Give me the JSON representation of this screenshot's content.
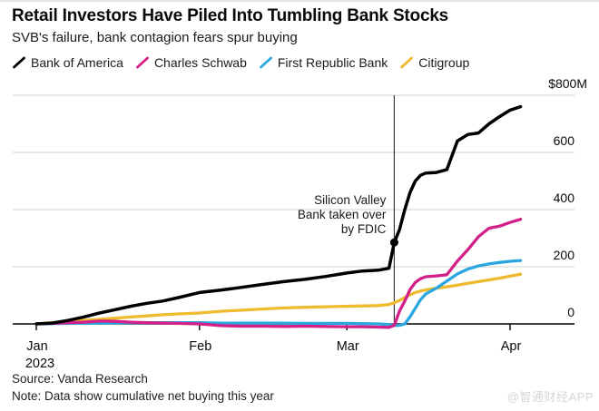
{
  "header": {
    "title": "Retail Investors Have Piled Into Tumbling Bank Stocks",
    "subtitle": "SVB's failure, bank contagion fears spur buying"
  },
  "legend": {
    "items": [
      {
        "label": "Bank of America",
        "color": "#000000"
      },
      {
        "label": "Charles Schwab",
        "color": "#d21f8a"
      },
      {
        "label": "First Republic Bank",
        "color": "#2ba7e0"
      },
      {
        "label": "Citigroup",
        "color": "#eeba2e"
      }
    ]
  },
  "footer": {
    "source": "Source: Vanda Research",
    "note": "Note: Data show cumulative net buying this year",
    "watermark": "@智通财经APP"
  },
  "chart_data": {
    "type": "line",
    "title": "Retail Investors Have Piled Into Tumbling Bank Stocks",
    "subtitle": "SVB's failure, bank contagion fears spur buying",
    "unit": "$M",
    "x_unit": "days since Jan 1 2023",
    "ylim": [
      -20,
      800
    ],
    "grid": "horizontal",
    "legend_position": "top",
    "x_days": [
      0,
      3,
      6,
      9,
      12,
      15,
      18,
      21,
      24,
      27,
      31,
      35,
      39,
      43,
      47,
      51,
      55,
      59,
      62,
      65,
      67,
      68,
      69,
      70,
      71,
      72,
      73,
      74,
      76,
      78,
      80,
      82,
      84,
      86,
      88,
      90,
      92
    ],
    "series": [
      {
        "name": "Bank of America",
        "color": "#000000",
        "values": [
          0,
          3,
          12,
          24,
          38,
          50,
          62,
          72,
          80,
          92,
          110,
          118,
          128,
          138,
          148,
          156,
          166,
          178,
          185,
          188,
          195,
          285,
          330,
          400,
          460,
          500,
          520,
          528,
          530,
          540,
          640,
          663,
          668,
          700,
          725,
          748,
          760
        ]
      },
      {
        "name": "Charles Schwab",
        "color": "#d21f8a",
        "values": [
          0,
          2,
          4,
          6,
          10,
          9,
          6,
          4,
          3,
          2,
          0,
          -6,
          -8,
          -8,
          -9,
          -8,
          -9,
          -10,
          -10,
          -11,
          -12,
          -5,
          45,
          80,
          120,
          145,
          158,
          165,
          168,
          172,
          220,
          260,
          305,
          335,
          342,
          355,
          366
        ]
      },
      {
        "name": "First Republic Bank",
        "color": "#2ba7e0",
        "values": [
          0,
          1,
          2,
          2,
          3,
          3,
          4,
          4,
          4,
          4,
          4,
          3,
          3,
          3,
          3,
          2,
          2,
          2,
          1,
          0,
          -2,
          -5,
          -5,
          0,
          25,
          55,
          85,
          105,
          125,
          150,
          175,
          192,
          203,
          210,
          215,
          219,
          222
        ]
      },
      {
        "name": "Citigroup",
        "color": "#eeba2e",
        "values": [
          0,
          4,
          8,
          12,
          16,
          20,
          24,
          28,
          32,
          35,
          38,
          44,
          48,
          52,
          56,
          58,
          60,
          62,
          63,
          64,
          68,
          74,
          82,
          92,
          102,
          110,
          115,
          119,
          125,
          130,
          136,
          142,
          148,
          154,
          160,
          167,
          174
        ]
      }
    ],
    "x_ticks": [
      {
        "day": 0,
        "label": "Jan",
        "sub": "2023"
      },
      {
        "day": 31,
        "label": "Feb"
      },
      {
        "day": 59,
        "label": "Mar"
      },
      {
        "day": 90,
        "label": "Apr"
      }
    ],
    "y_ticks": [
      {
        "value": 800,
        "label": "$800M"
      },
      {
        "value": 600,
        "label": "600"
      },
      {
        "value": 400,
        "label": "400"
      },
      {
        "value": 200,
        "label": "200"
      },
      {
        "value": 0,
        "label": "0"
      }
    ],
    "event": {
      "day": 68,
      "marker_value": 285,
      "marker_series": "Bank of America",
      "annotation_lines": [
        "Silicon Valley",
        "Bank taken over",
        "by FDIC"
      ]
    }
  }
}
